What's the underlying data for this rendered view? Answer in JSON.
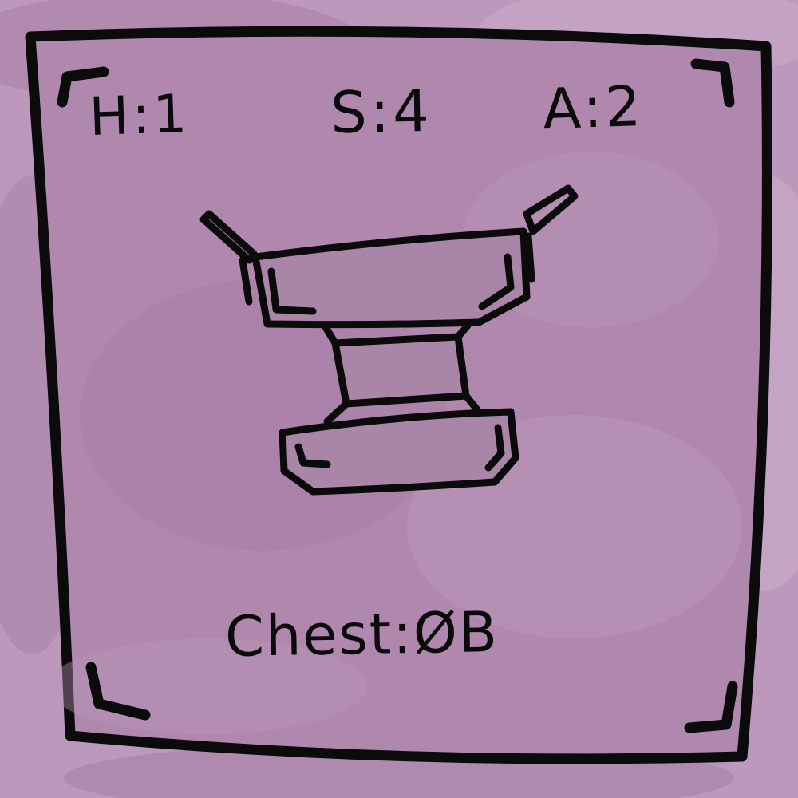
{
  "card": {
    "stats": {
      "health": "H:1",
      "speed": "S:4",
      "attack": "A:2"
    },
    "slot": "Chest:ØB",
    "item_icon": "chest-armor-icon"
  },
  "colors": {
    "background": "#bc98bc",
    "card_fill": "#b088ae",
    "ink": "#0b0b0b"
  }
}
